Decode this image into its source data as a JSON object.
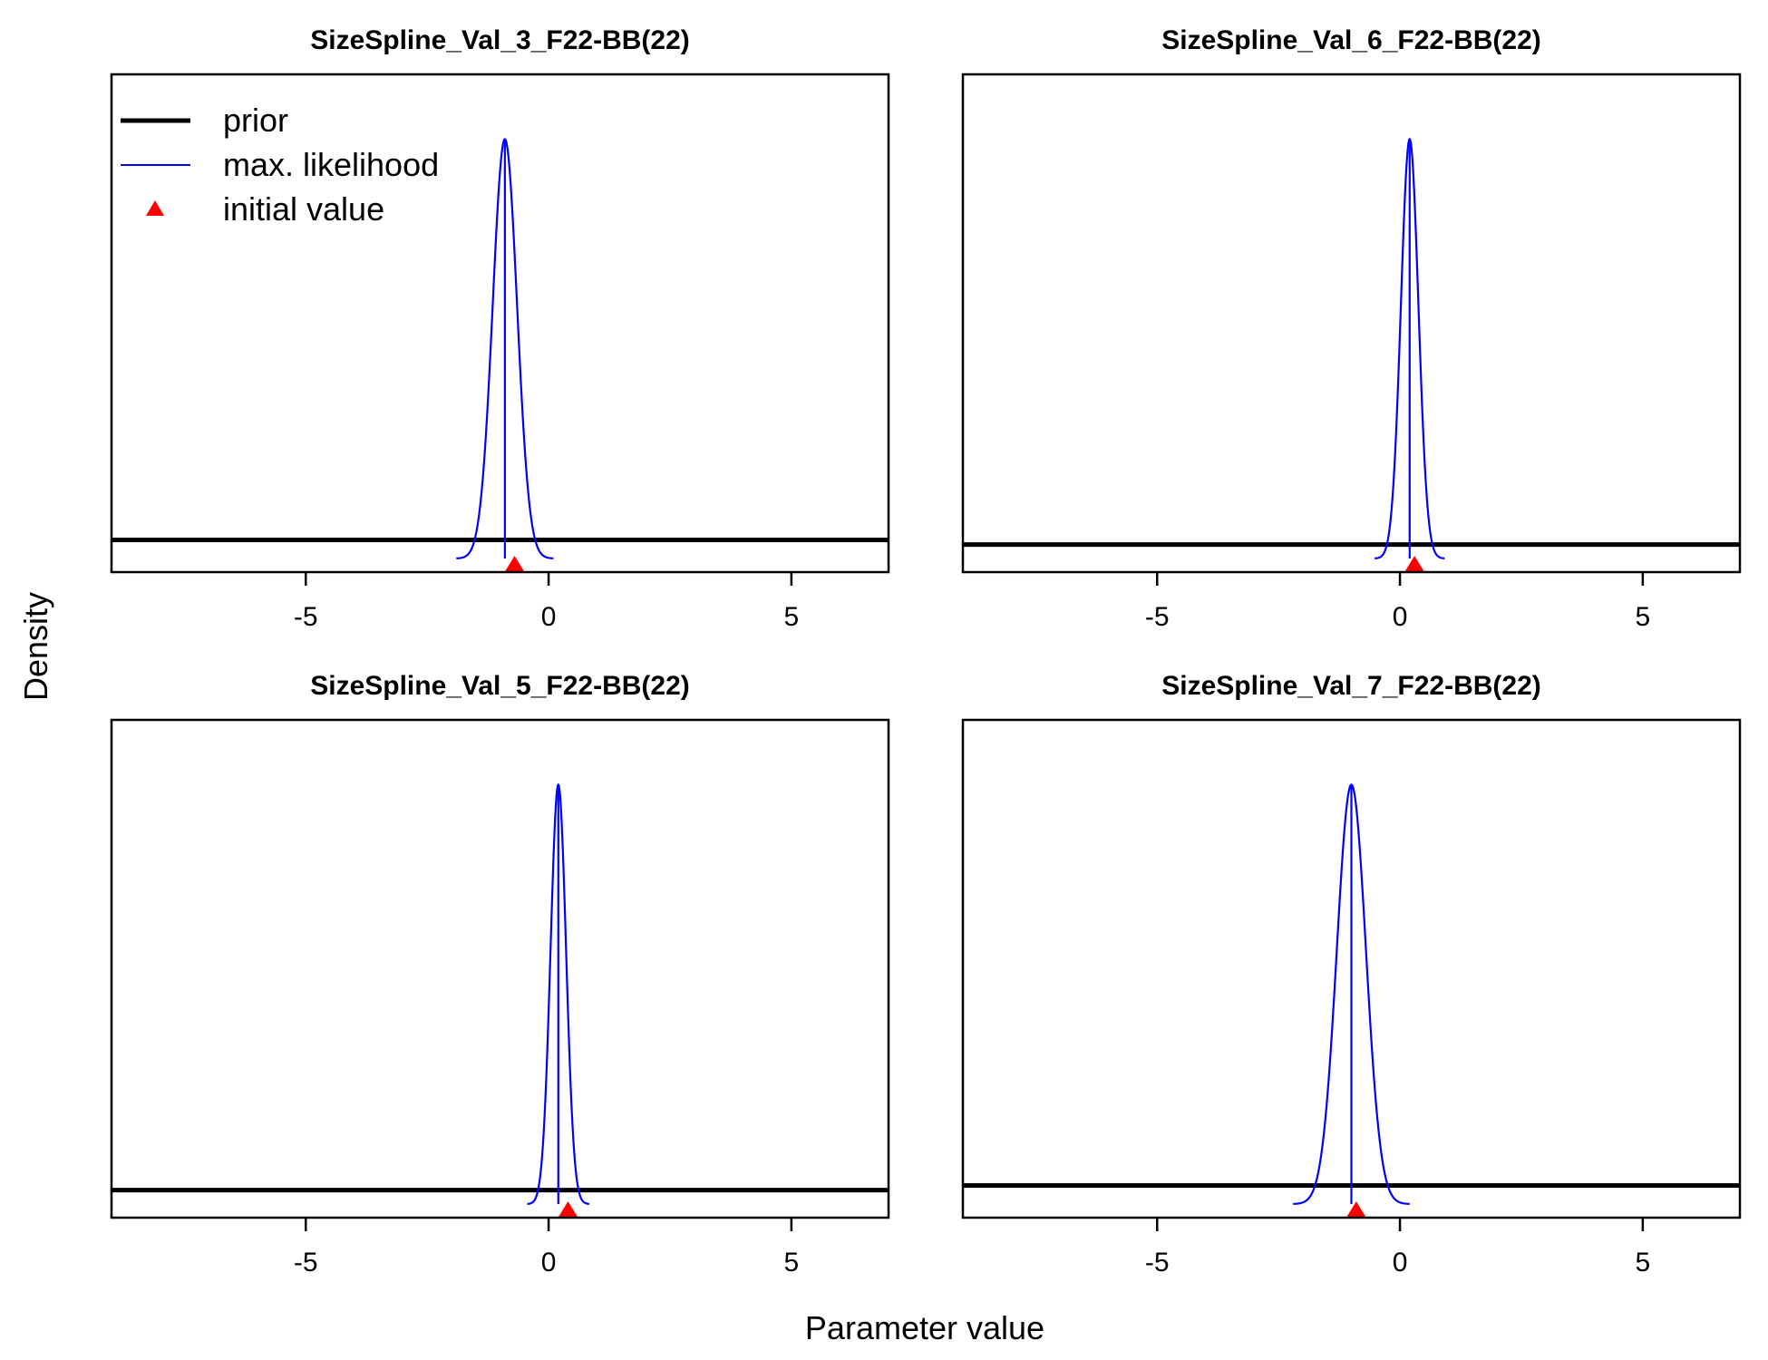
{
  "figure": {
    "ylabel": "Density",
    "xlabel": "Parameter value"
  },
  "legend": {
    "placement": "top-left of first panel",
    "items": [
      {
        "label": "prior",
        "color": "#000000",
        "kind": "thick-line"
      },
      {
        "label": "max. likelihood",
        "color": "#0000ff",
        "kind": "thin-line"
      },
      {
        "label": "initial value",
        "color": "#ff0000",
        "kind": "triangle"
      }
    ]
  },
  "chart_data": [
    {
      "type": "line",
      "title": "SizeSpline_Val_3_F22-BB(22)",
      "xlim": [
        -9,
        7
      ],
      "xticks": [
        -5,
        0,
        5
      ],
      "ylim": [
        0,
        1
      ],
      "prior": {
        "level": 0.04
      },
      "max_likelihood": {
        "mean": -0.9,
        "sd": 0.25,
        "peak": 0.9
      },
      "initial_value": -0.7
    },
    {
      "type": "line",
      "title": "SizeSpline_Val_6_F22-BB(22)",
      "xlim": [
        -9,
        7
      ],
      "xticks": [
        -5,
        0,
        5
      ],
      "ylim": [
        0,
        1
      ],
      "prior": {
        "level": 0.03
      },
      "max_likelihood": {
        "mean": 0.2,
        "sd": 0.18,
        "peak": 0.9
      },
      "initial_value": 0.3
    },
    {
      "type": "line",
      "title": "SizeSpline_Val_5_F22-BB(22)",
      "xlim": [
        -9,
        7
      ],
      "xticks": [
        -5,
        0,
        5
      ],
      "ylim": [
        0,
        1
      ],
      "prior": {
        "level": 0.03
      },
      "max_likelihood": {
        "mean": 0.2,
        "sd": 0.16,
        "peak": 0.9
      },
      "initial_value": 0.4
    },
    {
      "type": "line",
      "title": "SizeSpline_Val_7_F22-BB(22)",
      "xlim": [
        -9,
        7
      ],
      "xticks": [
        -5,
        0,
        5
      ],
      "ylim": [
        0,
        1
      ],
      "prior": {
        "level": 0.04
      },
      "max_likelihood": {
        "mean": -1.0,
        "sd": 0.3,
        "peak": 0.9
      },
      "initial_value": -0.9
    }
  ]
}
